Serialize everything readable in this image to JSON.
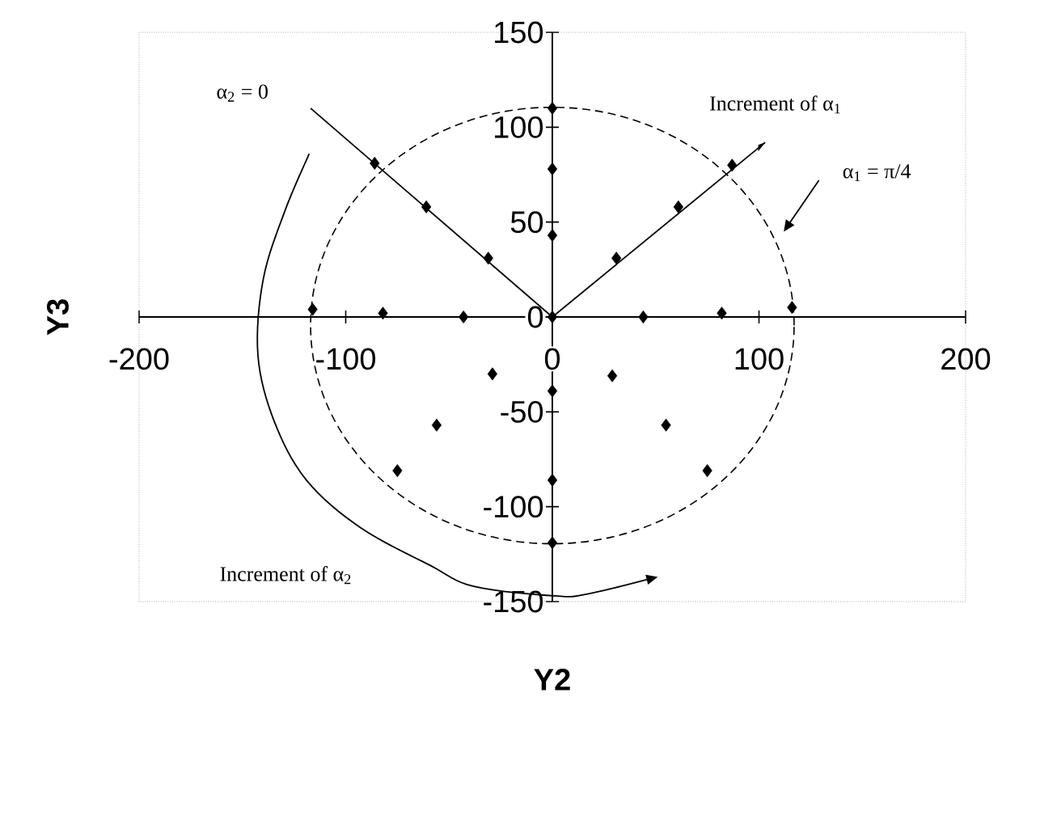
{
  "chart_data": {
    "type": "scatter",
    "xlabel": "Y2",
    "ylabel": "Y3",
    "xlim": [
      -200,
      200
    ],
    "ylim": [
      -150,
      150
    ],
    "xticks": [
      -200,
      -100,
      0,
      100,
      200
    ],
    "yticks": [
      -150,
      -100,
      -50,
      0,
      50,
      100,
      150
    ],
    "series": [
      {
        "color": "#000000",
        "marker": "diamond",
        "x": [
          0,
          -86,
          -61,
          -31,
          0,
          0,
          0,
          -116,
          -82,
          -43,
          87,
          61,
          31,
          44,
          82,
          116,
          -29,
          -56,
          -75,
          0,
          0,
          0,
          29,
          55,
          75
        ],
        "values": [
          0,
          81,
          58,
          31,
          110,
          78,
          43,
          4,
          2,
          0,
          80,
          58,
          31,
          0,
          2,
          5,
          -30,
          -57,
          -81,
          -39,
          -86,
          -119,
          -31,
          -57,
          -81
        ]
      },
      {
        "type": "line",
        "color": "#000000",
        "line_style": "solid",
        "x": [
          -117,
          0
        ],
        "values": [
          110,
          0
        ]
      },
      {
        "type": "line",
        "color": "#000000",
        "line_style": "solid",
        "x": [
          0,
          103
        ],
        "values": [
          0,
          92
        ]
      }
    ],
    "annotations": [
      "α$_{2}$ = 0",
      "Increment of α$_{1}$",
      "α$_{1}$ = π/4",
      "Increment of α$_{2}$"
    ]
  }
}
